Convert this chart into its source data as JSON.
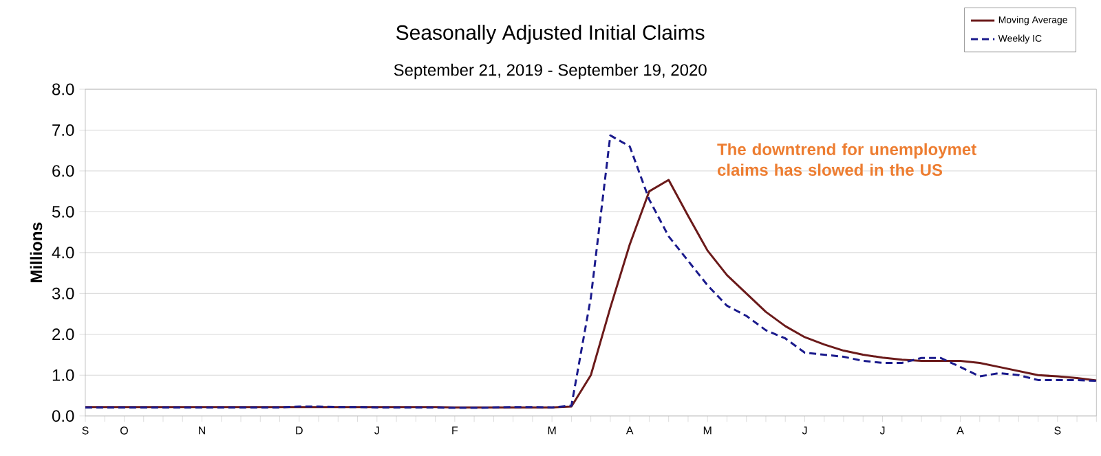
{
  "chart_data": {
    "type": "line",
    "title": "Seasonally Adjusted Initial Claims",
    "subtitle": "September 21, 2019 - September 19, 2020",
    "ylabel": "Millions",
    "categories": [
      "S",
      null,
      "O",
      null,
      null,
      null,
      "N",
      null,
      null,
      null,
      null,
      "D",
      null,
      null,
      null,
      "J",
      null,
      null,
      null,
      "F",
      null,
      null,
      null,
      null,
      "M",
      null,
      null,
      null,
      "A",
      null,
      null,
      null,
      "M",
      null,
      null,
      null,
      null,
      "J",
      null,
      null,
      null,
      "J",
      null,
      null,
      null,
      "A",
      null,
      null,
      null,
      null,
      "S",
      null,
      null
    ],
    "series": [
      {
        "name": "Moving Average",
        "color": "#6b1a1a",
        "line_style": "solid",
        "values": [
          0.22,
          0.22,
          0.22,
          0.22,
          0.22,
          0.22,
          0.22,
          0.22,
          0.22,
          0.22,
          0.22,
          0.22,
          0.22,
          0.22,
          0.22,
          0.22,
          0.22,
          0.22,
          0.22,
          0.21,
          0.21,
          0.21,
          0.21,
          0.21,
          0.21,
          0.23,
          1.0,
          2.65,
          4.2,
          5.5,
          5.78,
          4.9,
          4.05,
          3.45,
          3.0,
          2.55,
          2.2,
          1.93,
          1.75,
          1.6,
          1.5,
          1.43,
          1.38,
          1.35,
          1.35,
          1.35,
          1.3,
          1.2,
          1.1,
          1.0,
          0.97,
          0.93,
          0.87
        ]
      },
      {
        "name": "Weekly IC",
        "color": "#1a1a8c",
        "line_style": "dashed",
        "values": [
          0.21,
          0.21,
          0.21,
          0.21,
          0.21,
          0.21,
          0.21,
          0.21,
          0.21,
          0.21,
          0.21,
          0.23,
          0.23,
          0.22,
          0.22,
          0.21,
          0.21,
          0.21,
          0.21,
          0.2,
          0.2,
          0.21,
          0.22,
          0.22,
          0.21,
          0.25,
          2.9,
          6.87,
          6.6,
          5.3,
          4.4,
          3.8,
          3.2,
          2.7,
          2.45,
          2.1,
          1.9,
          1.55,
          1.5,
          1.45,
          1.35,
          1.3,
          1.3,
          1.42,
          1.42,
          1.2,
          0.97,
          1.05,
          1.0,
          0.88,
          0.88,
          0.88,
          0.86
        ]
      }
    ],
    "ylim": [
      0,
      8
    ],
    "yticks": [
      {
        "value": 0,
        "label": "0.0"
      },
      {
        "value": 1,
        "label": "1.0"
      },
      {
        "value": 2,
        "label": "2.0"
      },
      {
        "value": 3,
        "label": "3.0"
      },
      {
        "value": 4,
        "label": "4.0"
      },
      {
        "value": 5,
        "label": "5.0"
      },
      {
        "value": 6,
        "label": "6.0"
      },
      {
        "value": 7,
        "label": "7.0"
      },
      {
        "value": 8,
        "label": "8.0"
      }
    ],
    "grid": "y",
    "legend": "top right",
    "marker": "none",
    "annotations": [
      "The downtrend for unemploymet claims has slowed in the US"
    ]
  }
}
